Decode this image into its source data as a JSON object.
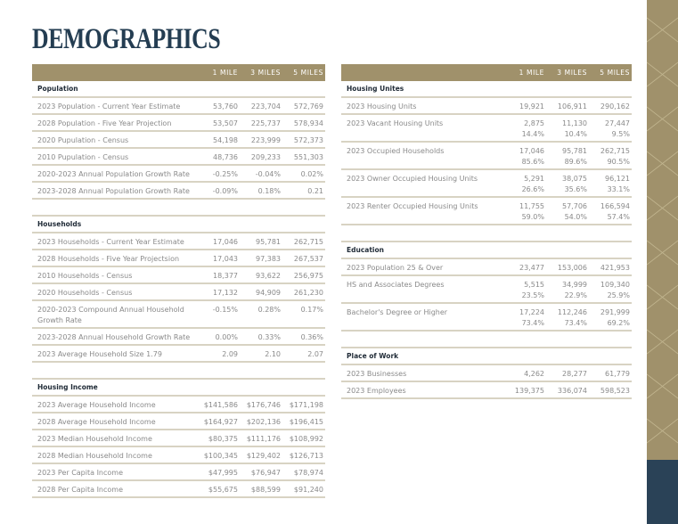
{
  "title": "DEMOGRAPHICS",
  "columns": [
    "1 MILE",
    "3 MILES",
    "5 MILES"
  ],
  "left": [
    {
      "title": "Population",
      "rows": [
        {
          "label": "2023 Population - Current Year Estimate",
          "values": [
            "53,760",
            "223,704",
            "572,769"
          ]
        },
        {
          "label": "2028 Population - Five Year Projection",
          "values": [
            "53,507",
            "225,737",
            "578,934"
          ]
        },
        {
          "label": "2020 Pupulation - Census",
          "values": [
            "54,198",
            "223,999",
            "572,373"
          ]
        },
        {
          "label": "2010 Pupulation - Census",
          "values": [
            "48,736",
            "209,233",
            "551,303"
          ]
        },
        {
          "label": "2020-2023 Annual Population Growth Rate",
          "values": [
            "-0.25%",
            "-0.04%",
            "0.02%"
          ]
        },
        {
          "label": "2023-2028 Annual Population Growth Rate",
          "values": [
            "-0.09%",
            "0.18%",
            "0.21"
          ]
        }
      ]
    },
    {
      "title": "Households",
      "rows": [
        {
          "label": "2023 Households - Current Year Estimate",
          "values": [
            "17,046",
            "95,781",
            "262,715"
          ]
        },
        {
          "label": "2028 Households - Five Year Projectsion",
          "values": [
            "17,043",
            "97,383",
            "267,537"
          ]
        },
        {
          "label": "2010 Households - Census",
          "values": [
            "18,377",
            "93,622",
            "256,975"
          ]
        },
        {
          "label": "2020 Households - Census",
          "values": [
            "17,132",
            "94,909",
            "261,230"
          ]
        },
        {
          "label": "2020-2023 Compound Annual Household Growth Rate",
          "values": [
            "-0.15%",
            "0.28%",
            "0.17%"
          ],
          "double": true
        },
        {
          "label": "2023-2028 Annual Household Growth Rate",
          "values": [
            "0.00%",
            "0.33%",
            "0.36%"
          ]
        },
        {
          "label": "2023 Average Household Size 1.79",
          "values": [
            "2.09",
            "2.10",
            "2.07"
          ]
        }
      ]
    },
    {
      "title": "Housing Income",
      "rows": [
        {
          "label": "2023 Average Household Income",
          "values": [
            "$141,586",
            "$176,746",
            "$171,198"
          ]
        },
        {
          "label": "2028 Average Household Income",
          "values": [
            "$164,927",
            "$202,136",
            "$196,415"
          ]
        },
        {
          "label": "2023 Median Household Income",
          "values": [
            "$80,375",
            "$111,176",
            "$108,992"
          ]
        },
        {
          "label": "2028 Median Household Income",
          "values": [
            "$100,345",
            "$129,402",
            "$126,713"
          ]
        },
        {
          "label": "2023 Per Capita Income",
          "values": [
            "$47,995",
            "$76,947",
            "$78,974"
          ]
        },
        {
          "label": "2028 Per Capita Income",
          "values": [
            "$55,675",
            "$88,599",
            "$91,240"
          ]
        }
      ]
    }
  ],
  "right": [
    {
      "title": "Housing Unites",
      "rows": [
        {
          "label": "2023 Housing Units",
          "values": [
            "19,921",
            "106,911",
            "290,162"
          ]
        },
        {
          "label": "2023 Vacant Housing Units",
          "values": [
            "2,875",
            "11,130",
            "27,447"
          ],
          "pcts": [
            "14.4%",
            "10.4%",
            "9.5%"
          ]
        },
        {
          "label": "2023 Occupied Households",
          "values": [
            "17,046",
            "95,781",
            "262,715"
          ],
          "pcts": [
            "85.6%",
            "89.6%",
            "90.5%"
          ]
        },
        {
          "label": "2023 Owner Occupied Housing Units",
          "values": [
            "5,291",
            "38,075",
            "96,121"
          ],
          "pcts": [
            "26.6%",
            "35.6%",
            "33.1%"
          ]
        },
        {
          "label": "2023 Renter Occupied Housing Units",
          "values": [
            "11,755",
            "57,706",
            "166,594"
          ],
          "pcts": [
            "59.0%",
            "54.0%",
            "57.4%"
          ]
        }
      ]
    },
    {
      "title": "Education",
      "rows": [
        {
          "label": "2023 Population 25 & Over",
          "values": [
            "23,477",
            "153,006",
            "421,953"
          ]
        },
        {
          "label": "HS and Associates Degrees",
          "values": [
            "5,515",
            "34,999",
            "109,340"
          ],
          "pcts": [
            "23.5%",
            "22.9%",
            "25.9%"
          ]
        },
        {
          "label": "Bachelor's Degree or Higher",
          "values": [
            "17,224",
            "112,246",
            "291,999"
          ],
          "pcts": [
            "73.4%",
            "73.4%",
            "69.2%"
          ]
        }
      ]
    },
    {
      "title": "Place of Work",
      "rows": [
        {
          "label": "2023 Businesses",
          "values": [
            "4,262",
            "28,277",
            "61,779"
          ]
        },
        {
          "label": "2023 Employees",
          "values": [
            "139,375",
            "336,074",
            "598,523"
          ]
        }
      ]
    }
  ],
  "colors": {
    "gold": "#a0916b",
    "navy": "#243d52"
  }
}
